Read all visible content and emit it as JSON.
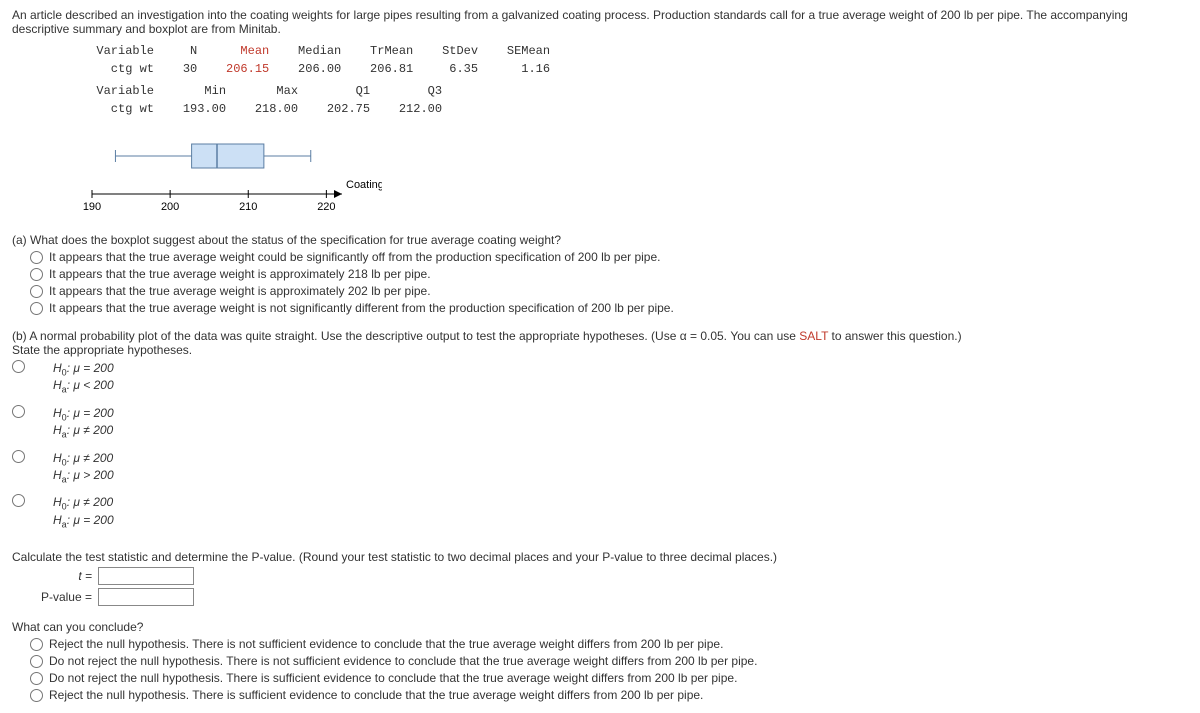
{
  "intro": "An article described an investigation into the coating weights for large pipes resulting from a galvanized coating process. Production standards call for a true average weight of 200 lb per pipe. The accompanying descriptive summary and boxplot are from Minitab.",
  "table1": {
    "headers": [
      "Variable",
      "N",
      "Mean",
      "Median",
      "TrMean",
      "StDev",
      "SEMean"
    ],
    "row": [
      "ctg wt",
      "30",
      "206.15",
      "206.00",
      "206.81",
      "6.35",
      "1.16"
    ],
    "highlight_index": 2
  },
  "table2": {
    "headers": [
      "Variable",
      "Min",
      "Max",
      "Q1",
      "Q3"
    ],
    "row": [
      "ctg wt",
      "193.00",
      "218.00",
      "202.75",
      "212.00"
    ]
  },
  "boxplot": {
    "axis_label": "Coating weight",
    "xmin": 190,
    "xmax": 222,
    "ticks": [
      190,
      200,
      210,
      220
    ],
    "min": 193,
    "q1": 202.75,
    "median": 206,
    "q3": 212,
    "max": 218,
    "box_fill": "#cce0f5",
    "stroke": "#5b7ea3",
    "axis_color": "#000000"
  },
  "partA": {
    "prompt": "(a) What does the boxplot suggest about the status of the specification for true average coating weight?",
    "options": [
      "It appears that the true average weight could be significantly off from the production specification of 200 lb per pipe.",
      "It appears that the true average weight is approximately 218 lb per pipe.",
      "It appears that the true average weight is approximately 202 lb per pipe.",
      "It appears that the true average weight is not significantly different from the production specification of 200 lb per pipe."
    ]
  },
  "partB": {
    "prompt_before": "(b) A normal probability plot of the data was quite straight. Use the descriptive output to test the appropriate hypotheses. (Use α = 0.05. You can use ",
    "salt": "SALT",
    "prompt_after": " to answer this question.)",
    "state": "State the appropriate hypotheses.",
    "options": [
      {
        "h0": "H₀: μ = 200",
        "ha": "Hₐ: μ < 200"
      },
      {
        "h0": "H₀: μ = 200",
        "ha": "Hₐ: μ ≠ 200"
      },
      {
        "h0": "H₀: μ ≠ 200",
        "ha": "Hₐ: μ > 200"
      },
      {
        "h0": "H₀: μ ≠ 200",
        "ha": "Hₐ: μ = 200"
      }
    ],
    "calc_prompt": "Calculate the test statistic and determine the P-value. (Round your test statistic to two decimal places and your P-value to three decimal places.)",
    "t_label": "t =",
    "p_label": "P-value ="
  },
  "conclusion": {
    "prompt": "What can you conclude?",
    "options": [
      "Reject the null hypothesis. There is not sufficient evidence to conclude that the true average weight differs from 200 lb per pipe.",
      "Do not reject the null hypothesis. There is not sufficient evidence to conclude that the true average weight differs from 200 lb per pipe.",
      "Do not reject the null hypothesis. There is sufficient evidence to conclude that the true average weight differs from 200 lb per pipe.",
      "Reject the null hypothesis. There is sufficient evidence to conclude that the true average weight differs from 200 lb per pipe."
    ]
  }
}
